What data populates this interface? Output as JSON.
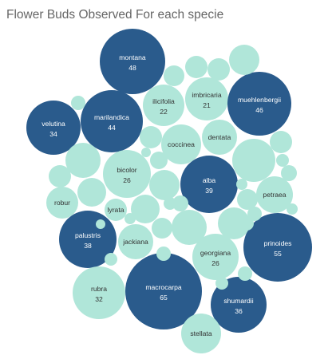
{
  "chart_data": {
    "type": "packed-bubble",
    "title": "Flower Buds Observed For each specie",
    "colors": {
      "high": "#2a5b8c",
      "low": "#b0e6d9",
      "text_on_high": "#ffffff",
      "text_on_low": "#333333"
    },
    "bubbles": [
      {
        "name": "montana",
        "value": "48",
        "highlight": true
      },
      {
        "name": "velutina",
        "value": "34",
        "highlight": true
      },
      {
        "name": "marilandica",
        "value": "44",
        "highlight": true
      },
      {
        "name": "ilicifolia",
        "value": "22",
        "highlight": false
      },
      {
        "name": "imbricaria",
        "value": "21",
        "highlight": false
      },
      {
        "name": "muehlenbergii",
        "value": "46",
        "highlight": true
      },
      {
        "name": "coccinea",
        "value": "",
        "highlight": false
      },
      {
        "name": "dentata",
        "value": "",
        "highlight": false
      },
      {
        "name": "bicolor",
        "value": "26",
        "highlight": false
      },
      {
        "name": "alba",
        "value": "39",
        "highlight": true
      },
      {
        "name": "petraea",
        "value": "",
        "highlight": false
      },
      {
        "name": "robur",
        "value": "",
        "highlight": false
      },
      {
        "name": "lyrata",
        "value": "",
        "highlight": false
      },
      {
        "name": "palustris",
        "value": "38",
        "highlight": true
      },
      {
        "name": "jackiana",
        "value": "",
        "highlight": false
      },
      {
        "name": "georgiana",
        "value": "26",
        "highlight": false
      },
      {
        "name": "prinoides",
        "value": "55",
        "highlight": true
      },
      {
        "name": "rubra",
        "value": "32",
        "highlight": false
      },
      {
        "name": "macrocarpa",
        "value": "65",
        "highlight": true
      },
      {
        "name": "shumardii",
        "value": "36",
        "highlight": true
      },
      {
        "name": "stellata",
        "value": "",
        "highlight": false
      },
      {
        "value": "",
        "highlight": false
      },
      {
        "value": "",
        "highlight": false
      },
      {
        "value": "",
        "highlight": false
      },
      {
        "value": "",
        "highlight": false
      },
      {
        "value": "",
        "highlight": false
      },
      {
        "value": "",
        "highlight": false
      },
      {
        "value": "",
        "highlight": false
      },
      {
        "value": "",
        "highlight": false
      },
      {
        "value": "",
        "highlight": false
      },
      {
        "value": "",
        "highlight": false
      },
      {
        "value": "",
        "highlight": false
      },
      {
        "value": "",
        "highlight": false
      },
      {
        "value": "",
        "highlight": false
      },
      {
        "value": "",
        "highlight": false
      },
      {
        "value": "",
        "highlight": false
      },
      {
        "value": "",
        "highlight": false
      },
      {
        "value": "",
        "highlight": false
      },
      {
        "value": "",
        "highlight": false
      },
      {
        "value": "",
        "highlight": false
      },
      {
        "value": "",
        "highlight": false
      },
      {
        "value": "",
        "highlight": false
      },
      {
        "value": "",
        "highlight": false
      },
      {
        "value": "",
        "highlight": false
      },
      {
        "value": "",
        "highlight": false
      },
      {
        "value": "",
        "highlight": false
      },
      {
        "value": "",
        "highlight": false
      },
      {
        "value": "",
        "highlight": false
      },
      {
        "value": "",
        "highlight": false
      },
      {
        "value": "",
        "highlight": false
      },
      {
        "value": "",
        "highlight": false
      },
      {
        "value": "",
        "highlight": false
      },
      {
        "value": "",
        "highlight": false
      },
      {
        "value": "",
        "highlight": false
      }
    ]
  }
}
